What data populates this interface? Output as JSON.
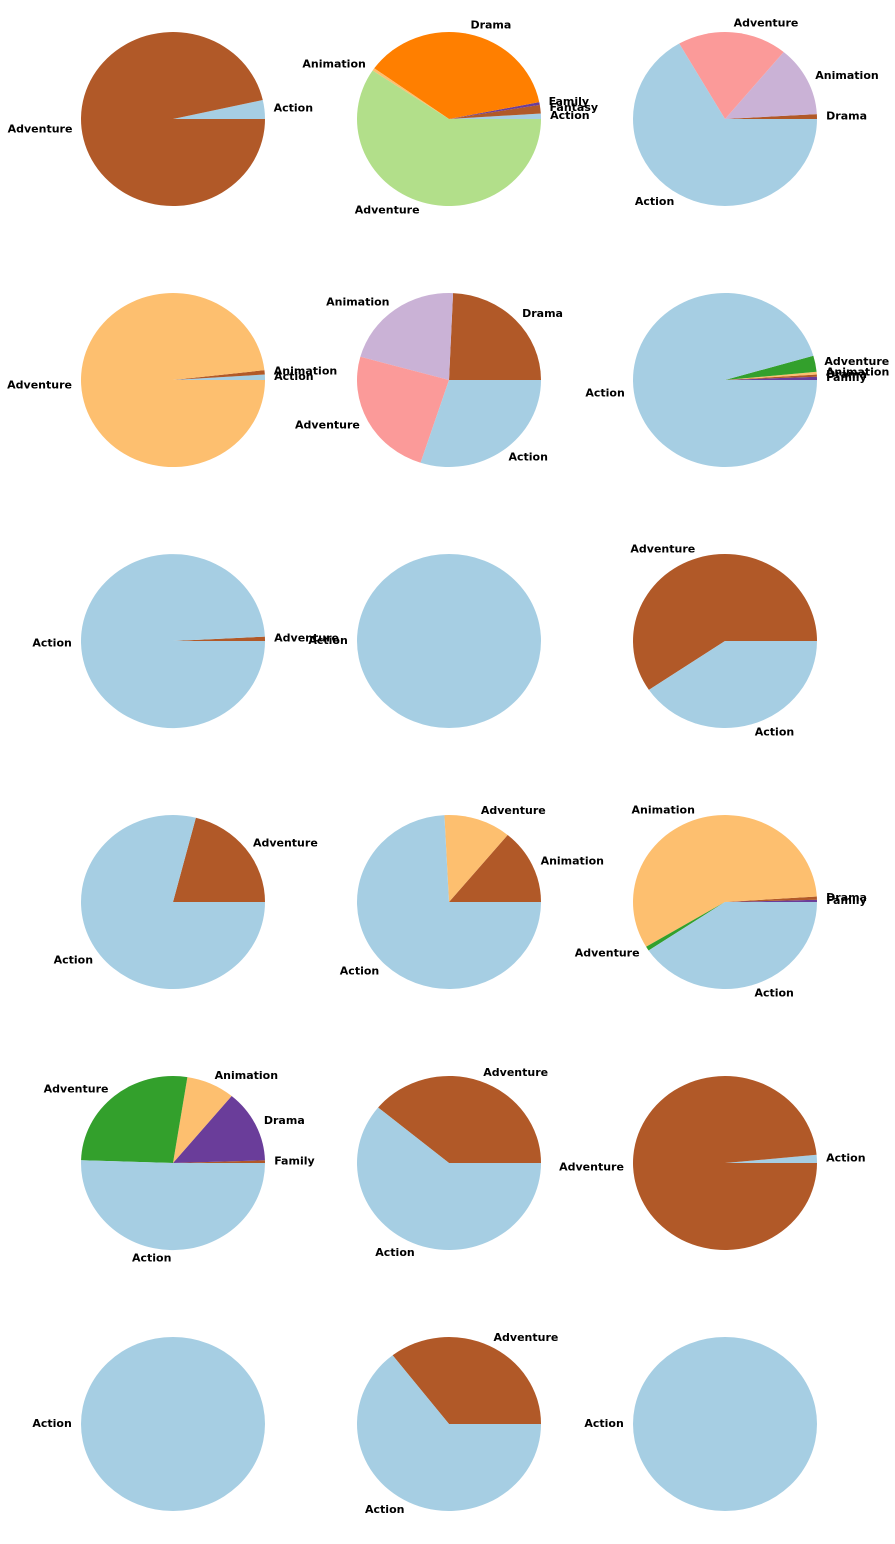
{
  "palette": {
    "Action": "#a6cee3",
    "Adventure": "#b15928",
    "Animation": "#cab2d6",
    "Drama": "#b15928",
    "Family": "#6a3d9a",
    "Fantasy": "#b15928"
  },
  "chart_data": [
    {
      "type": "pie",
      "slices": [
        {
          "label": "Action",
          "value": 3.5,
          "color": "#a6cee3"
        },
        {
          "label": "Adventure",
          "value": 96.5,
          "color": "#b15928"
        }
      ]
    },
    {
      "type": "pie",
      "slices": [
        {
          "label": "Action",
          "value": 1.0,
          "color": "#a6cee3"
        },
        {
          "label": "Fantasy",
          "value": 1.6,
          "color": "#b15928"
        },
        {
          "label": "Family",
          "value": 0.5,
          "color": "#6a3d9a"
        },
        {
          "label": "Drama",
          "value": 37.0,
          "color": "#ff7f00"
        },
        {
          "label": "Animation",
          "value": 0.5,
          "color": "#fdbf6f"
        },
        {
          "label": "Adventure",
          "value": 59.4,
          "color": "#b2df8a"
        }
      ]
    },
    {
      "type": "pie",
      "slices": [
        {
          "label": "Drama",
          "value": 0.9,
          "color": "#b15928"
        },
        {
          "label": "Animation",
          "value": 13.1,
          "color": "#cab2d6"
        },
        {
          "label": "Adventure",
          "value": 19.3,
          "color": "#fb9a99"
        },
        {
          "label": "Action",
          "value": 66.7,
          "color": "#a6cee3"
        }
      ]
    },
    {
      "type": "pie",
      "slices": [
        {
          "label": "Action",
          "value": 1.0,
          "color": "#a6cee3"
        },
        {
          "label": "Animation",
          "value": 0.8,
          "color": "#b15928"
        },
        {
          "label": "Adventure",
          "value": 98.2,
          "color": "#fdbf6f"
        }
      ]
    },
    {
      "type": "pie",
      "slices": [
        {
          "label": "Drama",
          "value": 24.3,
          "color": "#b15928"
        },
        {
          "label": "Animation",
          "value": 21.4,
          "color": "#cab2d6"
        },
        {
          "label": "Adventure",
          "value": 24.3,
          "color": "#fb9a99"
        },
        {
          "label": "Action",
          "value": 30.0,
          "color": "#a6cee3"
        }
      ]
    },
    {
      "type": "pie",
      "slices": [
        {
          "label": "Family",
          "value": 0.6,
          "color": "#6a3d9a"
        },
        {
          "label": "Drama",
          "value": 0.4,
          "color": "#b15928"
        },
        {
          "label": "Animation",
          "value": 0.5,
          "color": "#fdbf6f"
        },
        {
          "label": "Adventure",
          "value": 3.0,
          "color": "#33a02c"
        },
        {
          "label": "Action",
          "value": 95.5,
          "color": "#a6cee3"
        }
      ]
    },
    {
      "type": "pie",
      "slices": [
        {
          "label": "Adventure",
          "value": 0.8,
          "color": "#b15928"
        },
        {
          "label": "Action",
          "value": 99.2,
          "color": "#a6cee3"
        }
      ]
    },
    {
      "type": "pie",
      "slices": [
        {
          "label": "Action",
          "value": 100,
          "color": "#a6cee3"
        }
      ]
    },
    {
      "type": "pie",
      "slices": [
        {
          "label": "Adventure",
          "value": 59.5,
          "color": "#b15928"
        },
        {
          "label": "Action",
          "value": 40.5,
          "color": "#a6cee3"
        }
      ]
    },
    {
      "type": "pie",
      "slices": [
        {
          "label": "Adventure",
          "value": 21.0,
          "color": "#b15928"
        },
        {
          "label": "Action",
          "value": 79.0,
          "color": "#a6cee3"
        }
      ]
    },
    {
      "type": "pie",
      "slices": [
        {
          "label": "Animation",
          "value": 14.0,
          "color": "#b15928"
        },
        {
          "label": "Adventure",
          "value": 11.8,
          "color": "#fdbf6f"
        },
        {
          "label": "Action",
          "value": 74.2,
          "color": "#a6cee3"
        }
      ]
    },
    {
      "type": "pie",
      "slices": [
        {
          "label": "Family",
          "value": 0.4,
          "color": "#6a3d9a"
        },
        {
          "label": "Drama",
          "value": 0.6,
          "color": "#b15928"
        },
        {
          "label": "Animation",
          "value": 57.6,
          "color": "#fdbf6f"
        },
        {
          "label": "Adventure",
          "value": 0.8,
          "color": "#33a02c"
        },
        {
          "label": "Action",
          "value": 40.6,
          "color": "#a6cee3"
        }
      ]
    },
    {
      "type": "pie",
      "slices": [
        {
          "label": "Family",
          "value": 0.5,
          "color": "#b15928"
        },
        {
          "label": "Drama",
          "value": 13.5,
          "color": "#6a3d9a"
        },
        {
          "label": "Animation",
          "value": 8.5,
          "color": "#fdbf6f"
        },
        {
          "label": "Adventure",
          "value": 27.0,
          "color": "#33a02c"
        },
        {
          "label": "Action",
          "value": 50.5,
          "color": "#a6cee3"
        }
      ]
    },
    {
      "type": "pie",
      "slices": [
        {
          "label": "Adventure",
          "value": 39.0,
          "color": "#b15928"
        },
        {
          "label": "Action",
          "value": 61.0,
          "color": "#a6cee3"
        }
      ]
    },
    {
      "type": "pie",
      "slices": [
        {
          "label": "Action",
          "value": 1.5,
          "color": "#a6cee3"
        },
        {
          "label": "Adventure",
          "value": 98.5,
          "color": "#b15928"
        }
      ]
    },
    {
      "type": "pie",
      "slices": [
        {
          "label": "Action",
          "value": 100,
          "color": "#a6cee3"
        }
      ]
    },
    {
      "type": "pie",
      "slices": [
        {
          "label": "Adventure",
          "value": 35.5,
          "color": "#b15928"
        },
        {
          "label": "Action",
          "value": 64.5,
          "color": "#a6cee3"
        }
      ]
    },
    {
      "type": "pie",
      "slices": [
        {
          "label": "Action",
          "value": 100,
          "color": "#a6cee3"
        }
      ]
    }
  ]
}
